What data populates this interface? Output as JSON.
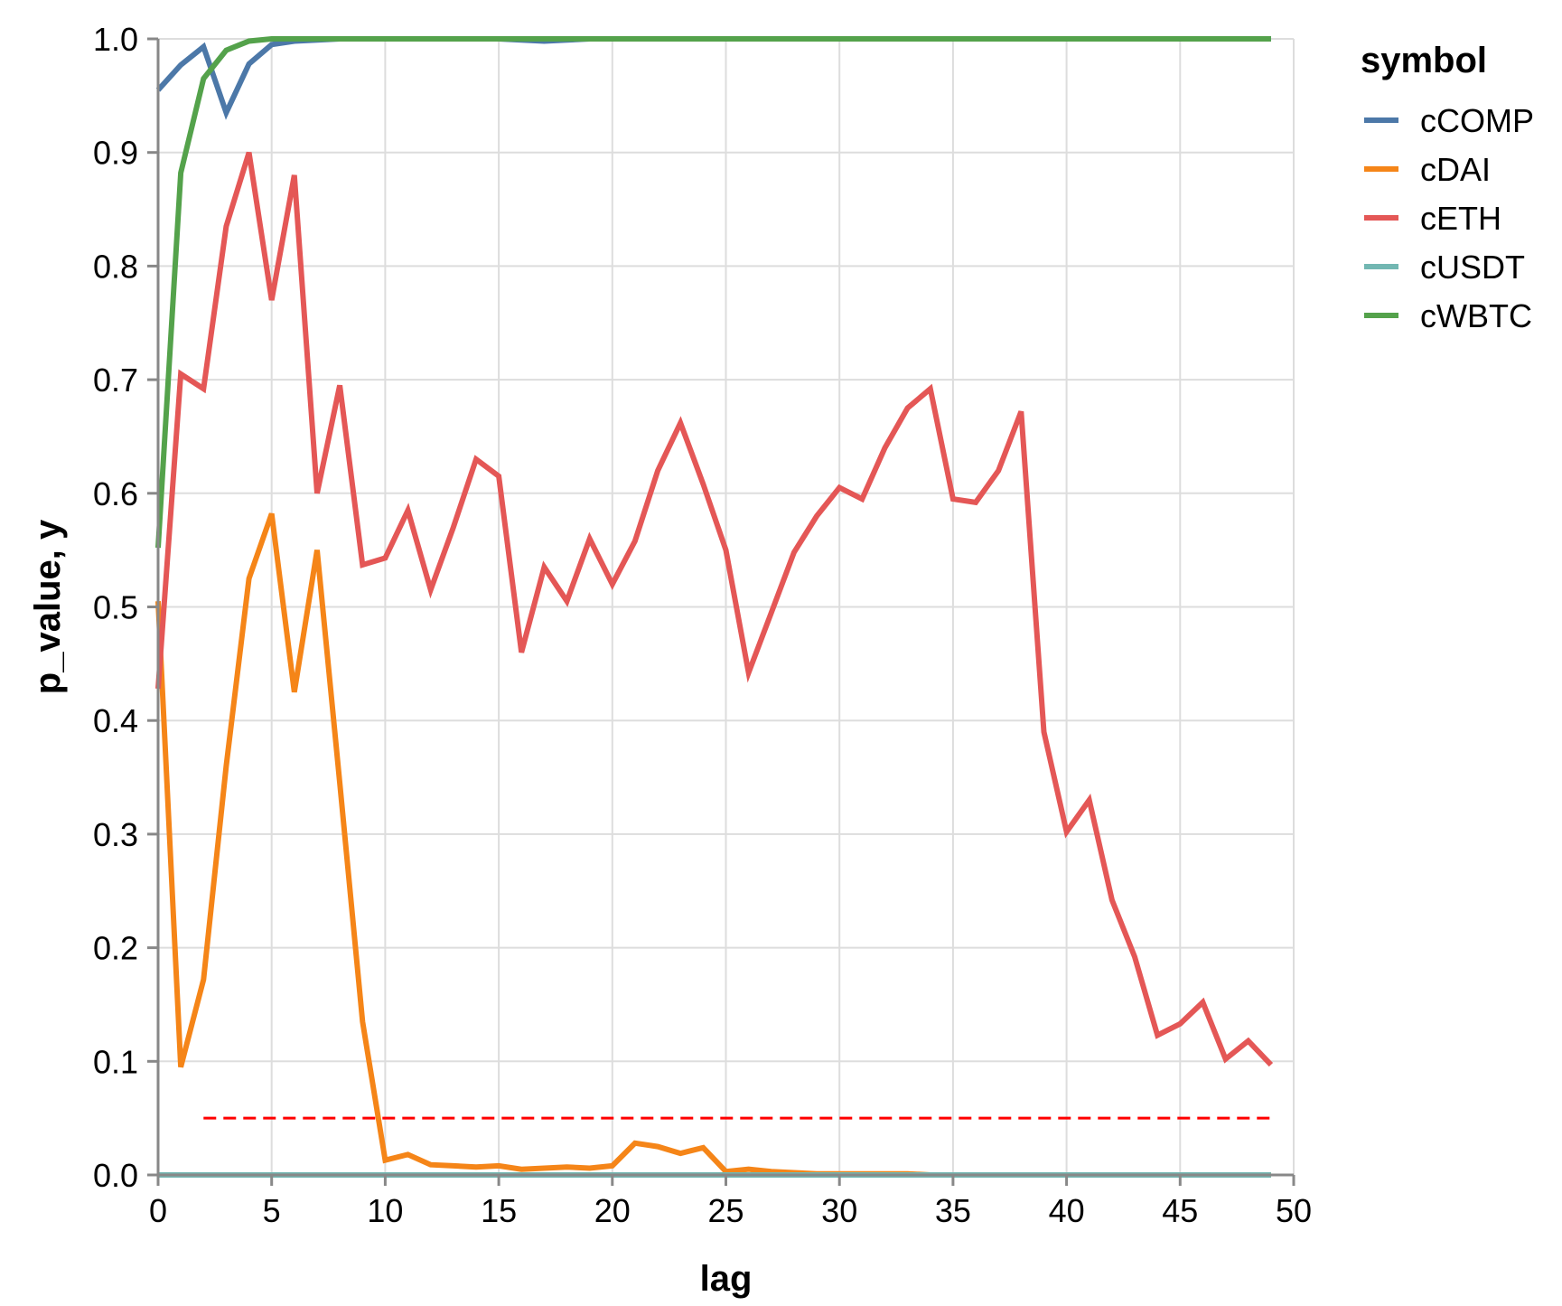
{
  "chart_data": {
    "type": "line",
    "xlabel": "lag",
    "ylabel": "p_value, y",
    "xlim": [
      0,
      50
    ],
    "ylim": [
      0,
      1
    ],
    "x_ticks": [
      0,
      5,
      10,
      15,
      20,
      25,
      30,
      35,
      40,
      45,
      50
    ],
    "y_ticks": [
      0.0,
      0.1,
      0.2,
      0.3,
      0.4,
      0.5,
      0.6,
      0.7,
      0.8,
      0.9,
      1.0
    ],
    "y_tick_labels": [
      "0.0",
      "0.1",
      "0.2",
      "0.3",
      "0.4",
      "0.5",
      "0.6",
      "0.7",
      "0.8",
      "0.9",
      "1.0"
    ],
    "grid": true,
    "legend": {
      "title": "symbol",
      "position": "top-right"
    },
    "threshold": {
      "value": 0.05,
      "color": "#ff0000",
      "style": "dashed"
    },
    "series": [
      {
        "name": "cCOMP",
        "color": "#4c78a8",
        "x": [
          0,
          1,
          2,
          3,
          4,
          5,
          6,
          7,
          8,
          9,
          10,
          11,
          12,
          13,
          14,
          15,
          16,
          17,
          18,
          19,
          20,
          21,
          22,
          23,
          24,
          25,
          26,
          27,
          28,
          29,
          30,
          31,
          32,
          33,
          34,
          35,
          36,
          37,
          38,
          39,
          40,
          41,
          42,
          43,
          44,
          45,
          46,
          47,
          48,
          49
        ],
        "values": [
          0.955,
          0.977,
          0.993,
          0.935,
          0.978,
          0.995,
          0.998,
          0.999,
          1.0,
          1.0,
          1.0,
          1.0,
          1.0,
          1.0,
          1.0,
          1.0,
          0.999,
          0.998,
          0.999,
          1.0,
          1.0,
          1.0,
          1.0,
          1.0,
          1.0,
          1.0,
          1.0,
          1.0,
          1.0,
          1.0,
          1.0,
          1.0,
          1.0,
          1.0,
          1.0,
          1.0,
          1.0,
          1.0,
          1.0,
          1.0,
          1.0,
          1.0,
          1.0,
          1.0,
          1.0,
          1.0,
          1.0,
          1.0,
          1.0,
          1.0
        ]
      },
      {
        "name": "cDAI",
        "color": "#f58518",
        "x": [
          0,
          1,
          2,
          3,
          4,
          5,
          6,
          7,
          8,
          9,
          10,
          11,
          12,
          13,
          14,
          15,
          16,
          17,
          18,
          19,
          20,
          21,
          22,
          23,
          24,
          25,
          26,
          27,
          28,
          29,
          30,
          31,
          32,
          33,
          34,
          35,
          36,
          37,
          38,
          39,
          40,
          41,
          42,
          43,
          44,
          45,
          46,
          47,
          48,
          49
        ],
        "values": [
          0.505,
          0.095,
          0.172,
          0.36,
          0.525,
          0.582,
          0.425,
          0.55,
          0.345,
          0.135,
          0.013,
          0.018,
          0.009,
          0.008,
          0.007,
          0.008,
          0.005,
          0.006,
          0.007,
          0.006,
          0.008,
          0.028,
          0.025,
          0.019,
          0.024,
          0.003,
          0.005,
          0.003,
          0.002,
          0.001,
          0.001,
          0.001,
          0.001,
          0.001,
          0.0,
          0.0,
          0.0,
          0.0,
          0.0,
          0.0,
          0.0,
          0.0,
          0.0,
          0.0,
          0.0,
          0.0,
          0.0,
          0.0,
          0.0,
          0.0
        ]
      },
      {
        "name": "cETH",
        "color": "#e45756",
        "x": [
          0,
          1,
          2,
          3,
          4,
          5,
          6,
          7,
          8,
          9,
          10,
          11,
          12,
          13,
          14,
          15,
          16,
          17,
          18,
          19,
          20,
          21,
          22,
          23,
          24,
          25,
          26,
          27,
          28,
          29,
          30,
          31,
          32,
          33,
          34,
          35,
          36,
          37,
          38,
          39,
          40,
          41,
          42,
          43,
          44,
          45,
          46,
          47,
          48,
          49
        ],
        "values": [
          0.428,
          0.705,
          0.692,
          0.835,
          0.9,
          0.77,
          0.88,
          0.6,
          0.695,
          0.537,
          0.543,
          0.585,
          0.515,
          0.57,
          0.63,
          0.615,
          0.46,
          0.535,
          0.505,
          0.56,
          0.52,
          0.558,
          0.62,
          0.662,
          0.608,
          0.55,
          0.442,
          0.495,
          0.548,
          0.58,
          0.605,
          0.595,
          0.64,
          0.675,
          0.692,
          0.595,
          0.592,
          0.62,
          0.672,
          0.39,
          0.302,
          0.33,
          0.242,
          0.192,
          0.123,
          0.133,
          0.152,
          0.102,
          0.118,
          0.097
        ]
      },
      {
        "name": "cUSDT",
        "color": "#72b7b2",
        "x": [
          0,
          1,
          2,
          3,
          4,
          5,
          6,
          7,
          8,
          9,
          10,
          11,
          12,
          13,
          14,
          15,
          16,
          17,
          18,
          19,
          20,
          21,
          22,
          23,
          24,
          25,
          26,
          27,
          28,
          29,
          30,
          31,
          32,
          33,
          34,
          35,
          36,
          37,
          38,
          39,
          40,
          41,
          42,
          43,
          44,
          45,
          46,
          47,
          48,
          49
        ],
        "values": [
          0.0,
          0.0,
          0.0,
          0.0,
          0.0,
          0.0,
          0.0,
          0.0,
          0.0,
          0.0,
          0.0,
          0.0,
          0.0,
          0.0,
          0.0,
          0.0,
          0.0,
          0.0,
          0.0,
          0.0,
          0.0,
          0.0,
          0.0,
          0.0,
          0.0,
          0.0,
          0.0,
          0.0,
          0.0,
          0.0,
          0.0,
          0.0,
          0.0,
          0.0,
          0.0,
          0.0,
          0.0,
          0.0,
          0.0,
          0.0,
          0.0,
          0.0,
          0.0,
          0.0,
          0.0,
          0.0,
          0.0,
          0.0,
          0.0,
          0.0
        ]
      },
      {
        "name": "cWBTC",
        "color": "#54a24b",
        "x": [
          0,
          1,
          2,
          3,
          4,
          5,
          6,
          7,
          8,
          9,
          10,
          11,
          12,
          13,
          14,
          15,
          16,
          17,
          18,
          19,
          20,
          21,
          22,
          23,
          24,
          25,
          26,
          27,
          28,
          29,
          30,
          31,
          32,
          33,
          34,
          35,
          36,
          37,
          38,
          39,
          40,
          41,
          42,
          43,
          44,
          45,
          46,
          47,
          48,
          49
        ],
        "values": [
          0.552,
          0.882,
          0.965,
          0.99,
          0.998,
          1.0,
          1.0,
          1.0,
          1.0,
          1.0,
          1.0,
          1.0,
          1.0,
          1.0,
          1.0,
          1.0,
          1.0,
          1.0,
          1.0,
          1.0,
          1.0,
          1.0,
          1.0,
          1.0,
          1.0,
          1.0,
          1.0,
          1.0,
          1.0,
          1.0,
          1.0,
          1.0,
          1.0,
          1.0,
          1.0,
          1.0,
          1.0,
          1.0,
          1.0,
          1.0,
          1.0,
          1.0,
          1.0,
          1.0,
          1.0,
          1.0,
          1.0,
          1.0,
          1.0,
          1.0
        ]
      }
    ]
  }
}
